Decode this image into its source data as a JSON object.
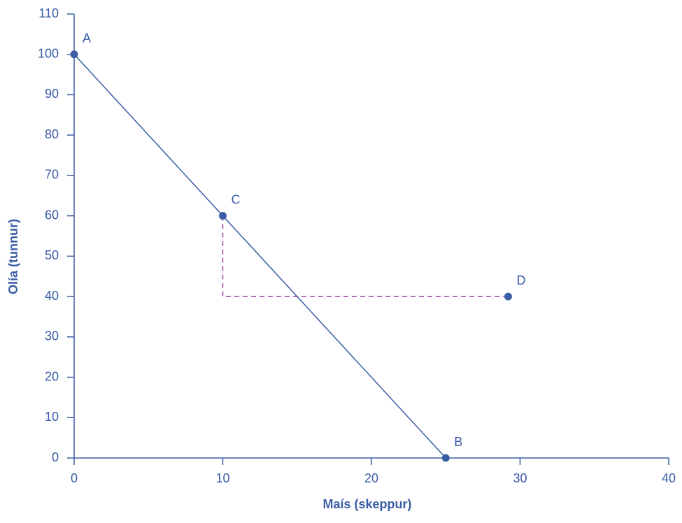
{
  "chart_data": {
    "type": "line",
    "x_label": "Maís (skeppur)",
    "y_label": "Olía (tunnur)",
    "xlim": [
      0,
      40
    ],
    "xticks": [
      0,
      10,
      20,
      30,
      40
    ],
    "ylim": [
      0,
      110
    ],
    "yticks": [
      0,
      10,
      20,
      30,
      40,
      50,
      60,
      70,
      80,
      90,
      100,
      110
    ],
    "grid": false,
    "axis_color": "#3b5da6",
    "series": [
      {
        "x": [
          0,
          25
        ],
        "values": [
          100,
          0
        ],
        "color": "#3b5da6",
        "dashed": false
      },
      {
        "x": [
          10,
          10,
          29.2
        ],
        "values": [
          60,
          40,
          40
        ],
        "color": "#9b45a0",
        "dashed": true
      }
    ],
    "points": {
      "labels": [
        "A",
        "C",
        "B",
        "D"
      ],
      "x": [
        0,
        10,
        25,
        29.2
      ],
      "values": [
        100,
        60,
        0,
        40
      ],
      "color": "#3b5da6"
    }
  }
}
